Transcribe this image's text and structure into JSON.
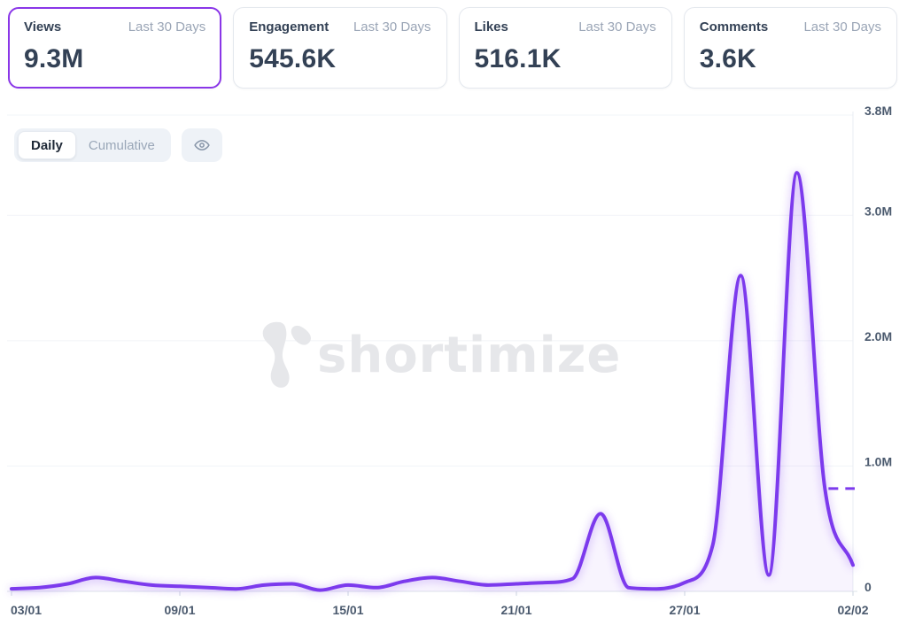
{
  "cards": [
    {
      "label": "Views",
      "period": "Last 30 Days",
      "value": "9.3M",
      "selected": true
    },
    {
      "label": "Engagement",
      "period": "Last 30 Days",
      "value": "545.6K",
      "selected": false
    },
    {
      "label": "Likes",
      "period": "Last 30 Days",
      "value": "516.1K",
      "selected": false
    },
    {
      "label": "Comments",
      "period": "Last 30 Days",
      "value": "3.6K",
      "selected": false
    }
  ],
  "toolbar": {
    "daily_label": "Daily",
    "cumulative_label": "Cumulative",
    "active_mode": "Daily",
    "eye_icon": "eye-icon"
  },
  "watermark": {
    "text": "shortimize",
    "logo": "shortimize-logo",
    "color": "#e6e7ea"
  },
  "colors": {
    "accent_line": "#7c3aed",
    "selected_card_border": "#8a36e8",
    "gridline": "#f1f4f8",
    "axis_line": "#dde3ea",
    "tick_text": "#4b5a6e",
    "muted_text": "#9aa5b6",
    "dark_text": "#334155"
  },
  "chart_data": {
    "type": "line",
    "selected_metric": "Views",
    "mode": "Daily",
    "x": [
      "03/01",
      "04/01",
      "05/01",
      "06/01",
      "07/01",
      "08/01",
      "09/01",
      "10/01",
      "11/01",
      "12/01",
      "13/01",
      "14/01",
      "15/01",
      "16/01",
      "17/01",
      "18/01",
      "19/01",
      "20/01",
      "21/01",
      "22/01",
      "23/01",
      "24/01",
      "25/01",
      "26/01",
      "27/01",
      "28/01",
      "29/01",
      "30/01",
      "31/01",
      "01/02",
      "02/02"
    ],
    "values_millions": [
      0.02,
      0.03,
      0.06,
      0.11,
      0.08,
      0.05,
      0.04,
      0.03,
      0.02,
      0.05,
      0.06,
      0.01,
      0.05,
      0.03,
      0.08,
      0.11,
      0.08,
      0.05,
      0.06,
      0.07,
      0.1,
      0.62,
      0.03,
      0.02,
      0.07,
      0.37,
      2.52,
      0.13,
      3.34,
      0.82,
      0.21
    ],
    "x_tick_labels": [
      "03/01",
      "09/01",
      "15/01",
      "21/01",
      "27/01",
      "02/02"
    ],
    "y_ticks": [
      {
        "v": 3.8,
        "label": "3.8M"
      },
      {
        "v": 3.0,
        "label": "3.0M"
      },
      {
        "v": 2.0,
        "label": "2.0M"
      },
      {
        "v": 1.0,
        "label": "1.0M"
      },
      {
        "v": 0,
        "label": "0"
      }
    ],
    "ylim": [
      0,
      3.8
    ],
    "grid": "horizontal",
    "legend": "none",
    "line_color": "#7c3aed",
    "fill_color": "rgba(124,58,237,0.055)",
    "dashed_marker": {
      "start_label": "01/02",
      "value_millions": 0.82,
      "extends_to": "right-axis"
    }
  }
}
